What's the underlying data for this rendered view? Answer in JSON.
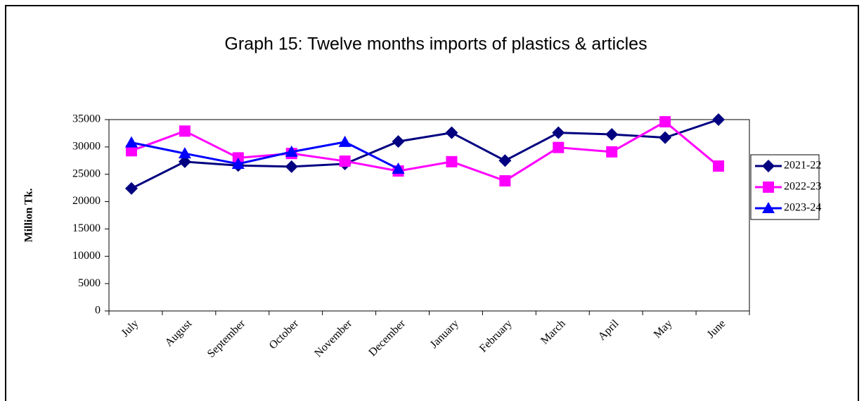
{
  "chart_data": {
    "type": "line",
    "title": "Graph 15: Twelve months imports of plastics & articles",
    "y_label": "Million Tk.",
    "categories": [
      "July",
      "August",
      "September",
      "October",
      "November",
      "December",
      "January",
      "February",
      "March",
      "April",
      "May",
      "June"
    ],
    "series": [
      {
        "name": "2021-22",
        "color": "#000080",
        "marker": "diamond",
        "values": [
          22400,
          27300,
          26600,
          26400,
          26900,
          31000,
          32600,
          27500,
          32600,
          32300,
          31700,
          35000
        ]
      },
      {
        "name": "2022-23",
        "color": "#ff00ff",
        "marker": "square",
        "values": [
          29300,
          32900,
          28000,
          28800,
          27400,
          25600,
          27300,
          23800,
          29900,
          29100,
          34600,
          26500
        ]
      },
      {
        "name": "2023-24",
        "color": "#0000ff",
        "marker": "triangle",
        "values": [
          30800,
          28800,
          26900,
          29100,
          30900,
          26000,
          null,
          null,
          null,
          null,
          null,
          null
        ]
      }
    ],
    "ylim": [
      0,
      35000
    ],
    "yticks": [
      0,
      5000,
      10000,
      15000,
      20000,
      25000,
      30000,
      35000
    ],
    "grid": false,
    "legend": "right"
  }
}
